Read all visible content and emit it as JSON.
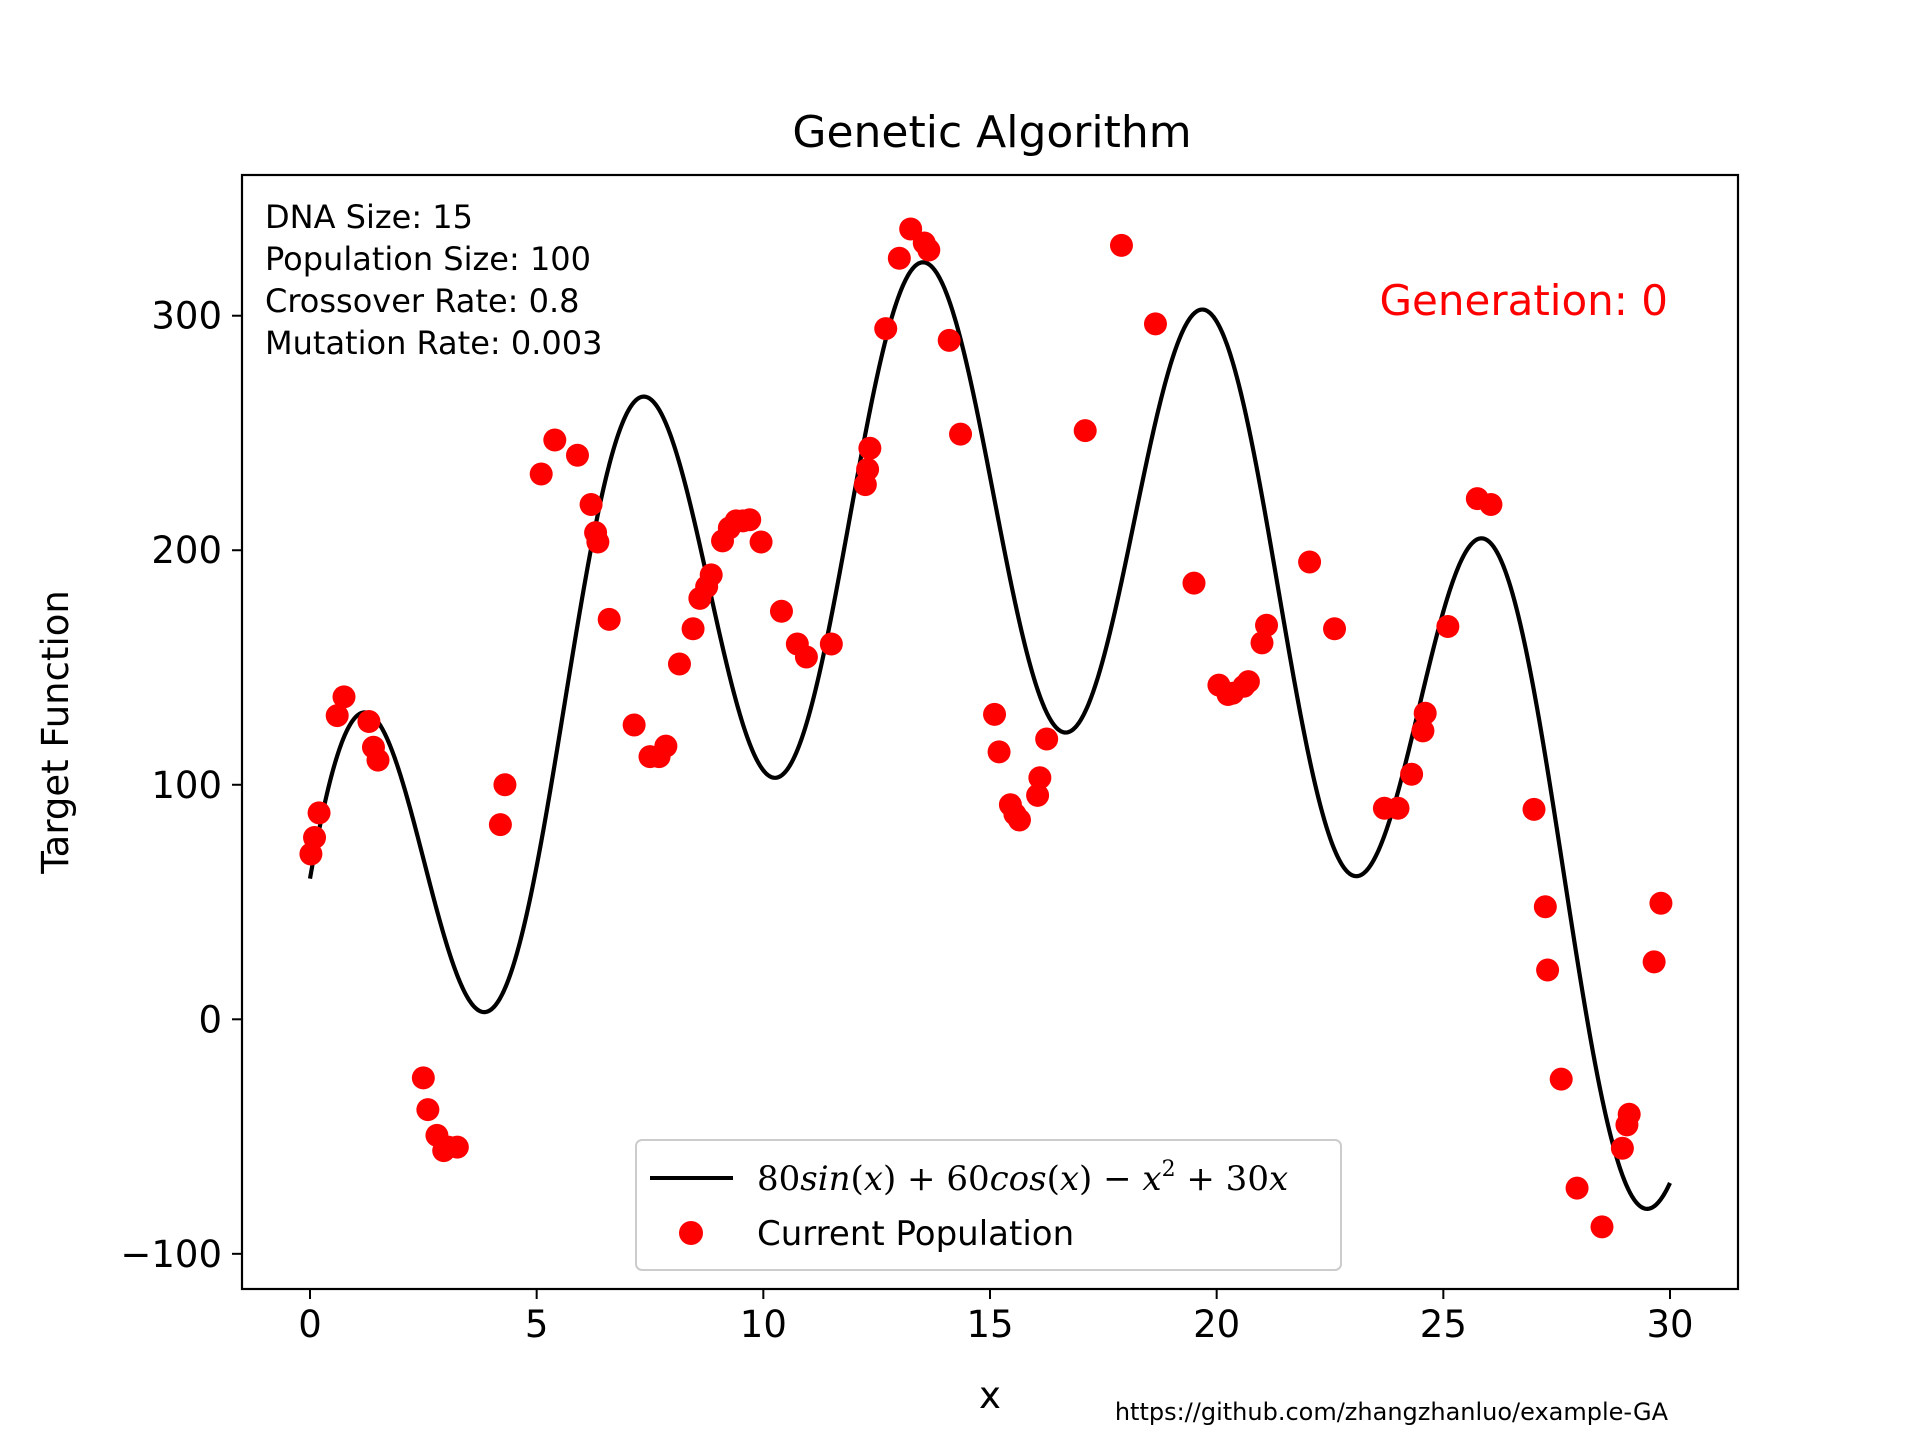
{
  "chart_data": {
    "type": "line",
    "title": "Genetic Algorithm",
    "xlabel": "x",
    "ylabel": "Target Function",
    "xlim": [
      -1.5,
      31.5
    ],
    "ylim": [
      -115,
      360
    ],
    "xticks": [
      0,
      5,
      10,
      15,
      20,
      25,
      30
    ],
    "yticks": [
      -100,
      0,
      100,
      200,
      300
    ],
    "xtick_labels": [
      "0",
      "5",
      "10",
      "15",
      "20",
      "25",
      "30"
    ],
    "ytick_labels": [
      "−100",
      "0",
      "100",
      "200",
      "300"
    ],
    "grid": false,
    "legend_position": "bottom-center",
    "info_lines": [
      "DNA Size: 15",
      "Population Size: 100",
      "Crossover Rate: 0.8",
      "Mutation Rate: 0.003"
    ],
    "generation_label": "Generation: 0",
    "generation_color": "#ff0000",
    "source_text": "https://github.com/zhangzhanluo/example-GA",
    "series": [
      {
        "name": "80sin(x)+60cos(x)−x²+30x",
        "kind": "line",
        "color": "#000000",
        "function": {
          "a_sin": 80,
          "b_cos": 60,
          "c_x2": -1,
          "d_x": 30
        },
        "x_range": [
          0,
          30
        ],
        "samples": 1200
      },
      {
        "name": "Current Population",
        "kind": "scatter",
        "color": "#ff0000",
        "x": [
          0.02,
          0.1,
          0.2,
          0.6,
          0.75,
          1.3,
          1.4,
          1.5,
          2.5,
          2.6,
          2.8,
          2.95,
          3.05,
          3.25,
          4.2,
          4.3,
          5.1,
          5.4,
          5.9,
          6.2,
          6.3,
          6.35,
          6.6,
          7.15,
          7.5,
          7.7,
          7.85,
          8.15,
          8.45,
          8.6,
          8.75,
          8.85,
          9.1,
          9.25,
          9.4,
          9.55,
          9.7,
          9.95,
          10.4,
          10.75,
          10.95,
          11.5,
          12.25,
          12.3,
          12.35,
          12.7,
          13.0,
          13.25,
          13.55,
          13.65,
          14.1,
          14.35,
          15.1,
          15.2,
          15.45,
          15.55,
          15.65,
          16.05,
          16.1,
          16.25,
          17.1,
          17.9,
          18.65,
          19.5,
          20.05,
          20.25,
          20.35,
          20.6,
          20.7,
          21.0,
          21.1,
          22.05,
          22.6,
          23.7,
          24.0,
          24.3,
          24.55,
          24.6,
          25.1,
          25.75,
          26.05,
          27.0,
          27.25,
          27.3,
          27.6,
          27.95,
          28.5,
          28.95,
          29.05,
          29.1,
          29.65,
          29.8
        ],
        "y": [
          70.5,
          77.5,
          88,
          129.5,
          137.5,
          127,
          116,
          110.5,
          -25,
          -38.5,
          -49.5,
          -56,
          -54.5,
          -54.5,
          83,
          100,
          232.5,
          247,
          240.5,
          219.5,
          207.5,
          203.5,
          170.5,
          125.5,
          112,
          112,
          116.5,
          151.5,
          166.5,
          179.5,
          184.5,
          189.5,
          204,
          209.5,
          212.5,
          212.5,
          213,
          203.5,
          174,
          160,
          154.5,
          160,
          228,
          234.5,
          243.5,
          294.5,
          324.5,
          337,
          331,
          328,
          289.5,
          249.5,
          130,
          114,
          91.5,
          87.5,
          85,
          95.5,
          103,
          119.5,
          251,
          330,
          296.5,
          186,
          142.5,
          138.5,
          139,
          142,
          144,
          160.5,
          168,
          195,
          166.5,
          90,
          90,
          104.5,
          123,
          130.5,
          167.5,
          222,
          219.5,
          89.5,
          48,
          21,
          -25.5,
          -72,
          -88.5,
          -55,
          -45,
          -40.5,
          24.5,
          49.5
        ]
      }
    ]
  }
}
